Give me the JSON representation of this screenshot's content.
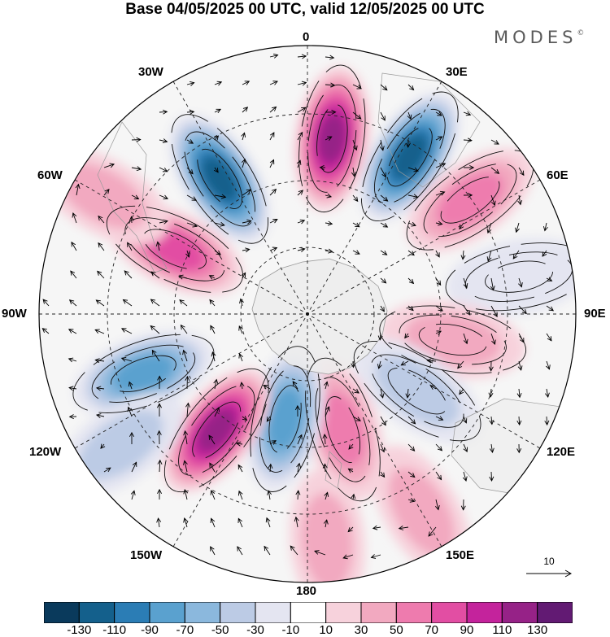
{
  "title": "Base 04/05/2025 00 UTC, valid 12/05/2025 00 UTC",
  "brand": {
    "name": "MODES",
    "mark": "©"
  },
  "longitude_labels": [
    "0",
    "30E",
    "60E",
    "90E",
    "120E",
    "150E",
    "180",
    "150W",
    "120W",
    "90W",
    "60W",
    "30W"
  ],
  "vector_scale": {
    "label": "10"
  },
  "colorbar": {
    "colors": [
      "#0a3a5c",
      "#14608c",
      "#2b7db5",
      "#5aa1cf",
      "#8bb8dd",
      "#bccbe5",
      "#e4e5f1",
      "#ffffff",
      "#f7d2dc",
      "#f2a9c0",
      "#ee7bae",
      "#e24ea3",
      "#c4239c",
      "#962287",
      "#621a73"
    ],
    "tick_labels": [
      "-130",
      "-110",
      "-90",
      "-70",
      "-50",
      "-30",
      "-10",
      "10",
      "30",
      "50",
      "70",
      "90",
      "110",
      "130"
    ]
  },
  "anomaly_centers": [
    {
      "bearing": 8,
      "dist": 0.66,
      "value": 120
    },
    {
      "bearing": 33,
      "dist": 0.7,
      "value": -115
    },
    {
      "bearing": 55,
      "dist": 0.74,
      "value": 55
    },
    {
      "bearing": 80,
      "dist": 0.8,
      "value": -20
    },
    {
      "bearing": 100,
      "dist": 0.55,
      "value": 30
    },
    {
      "bearing": 125,
      "dist": 0.5,
      "value": -35
    },
    {
      "bearing": 163,
      "dist": 0.45,
      "value": 50
    },
    {
      "bearing": 192,
      "dist": 0.4,
      "value": -80
    },
    {
      "bearing": 218,
      "dist": 0.55,
      "value": 110
    },
    {
      "bearing": 250,
      "dist": 0.65,
      "value": -80
    },
    {
      "bearing": 296,
      "dist": 0.55,
      "value": 75
    },
    {
      "bearing": 327,
      "dist": 0.6,
      "value": -115
    },
    {
      "bearing": 300,
      "dist": 0.88,
      "value": 30
    },
    {
      "bearing": 175,
      "dist": 0.85,
      "value": 40
    },
    {
      "bearing": 150,
      "dist": 0.85,
      "value": 30
    },
    {
      "bearing": 235,
      "dist": 0.85,
      "value": -30
    }
  ]
}
